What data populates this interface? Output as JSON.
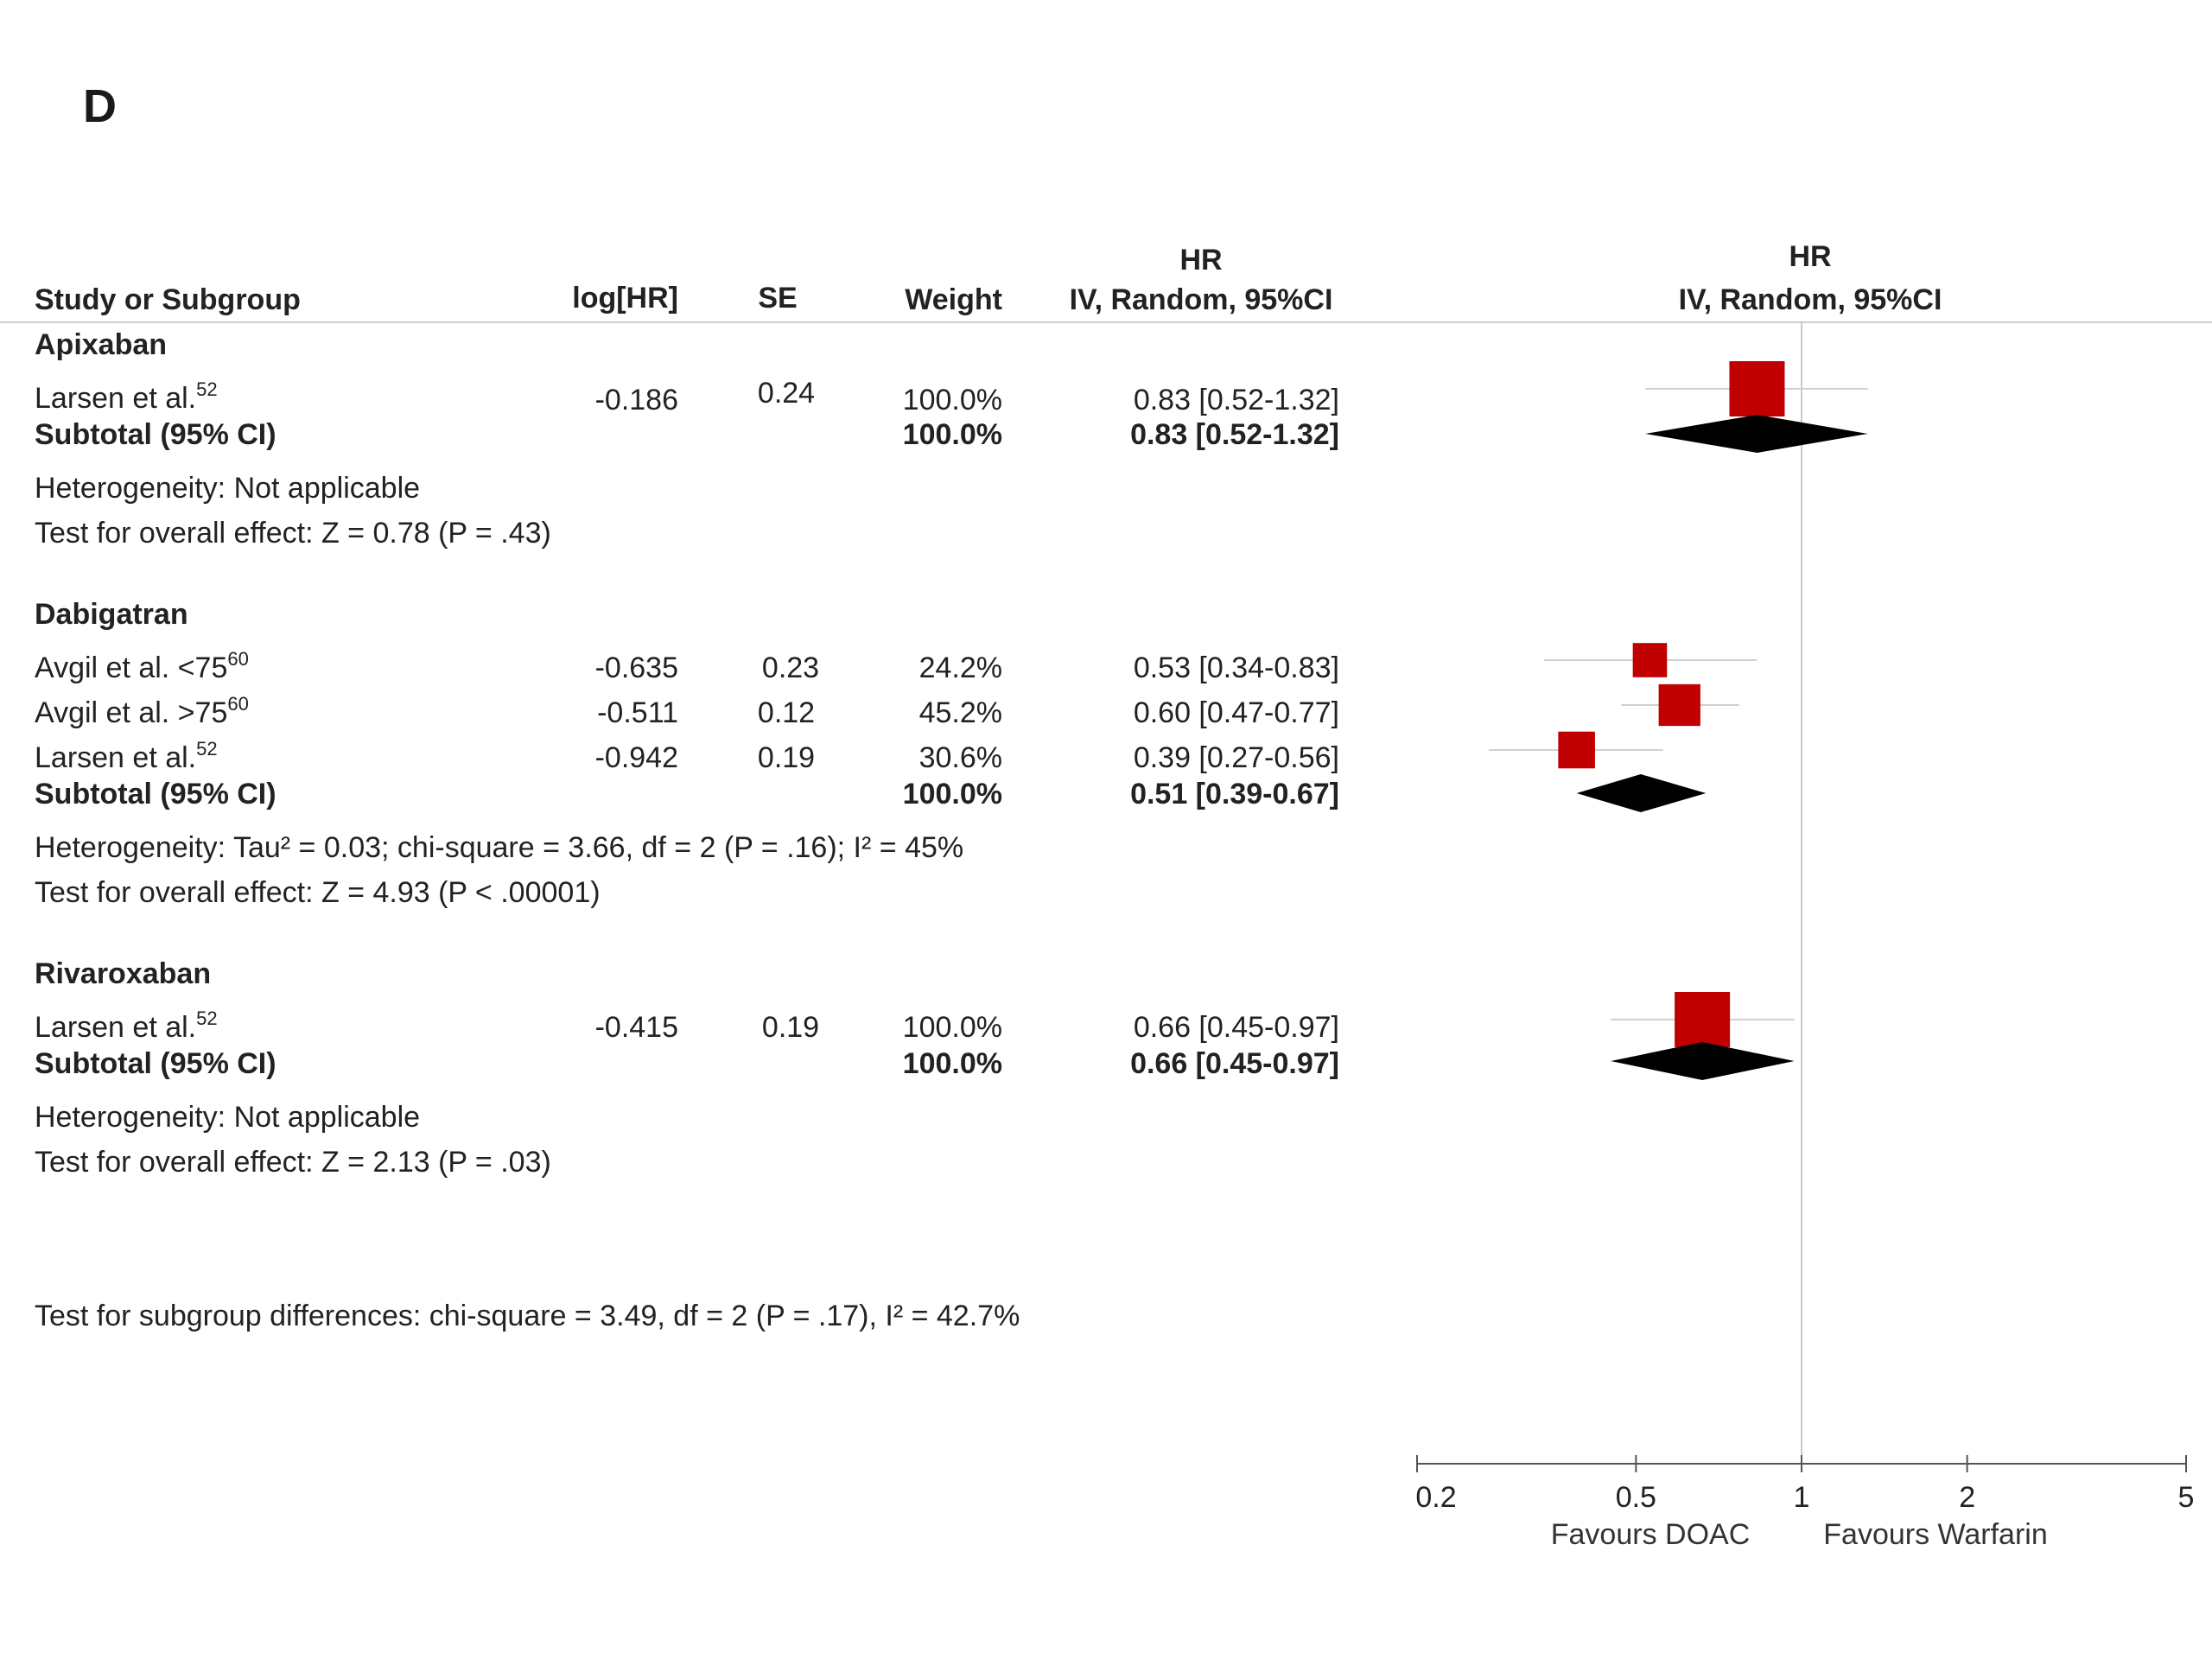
{
  "panel_label": "D",
  "headers": {
    "study": "Study or Subgroup",
    "loghr": "log[HR]",
    "se": "SE",
    "weight": "Weight",
    "hr_text_top": "HR",
    "hr_text_bottom": "IV, Random, 95%CI",
    "hr_plot_top": "HR",
    "hr_plot_bottom": "IV, Random, 95%CI"
  },
  "groups": [
    {
      "name": "Apixaban",
      "studies": [
        {
          "label": "Larsen et al.",
          "ref": "52",
          "loghr": "-0.186",
          "se": "0.24",
          "weight": "100.0%",
          "ci_text": "0.83 [0.52-1.32]"
        }
      ],
      "subtotal_label": "Subtotal (95% CI)",
      "subtotal_weight": "100.0%",
      "subtotal_ci_text": "0.83 [0.52-1.32]",
      "heterogeneity": "Heterogeneity: Not applicable",
      "overall": "Test for overall effect: Z = 0.78 (P = .43)"
    },
    {
      "name": "Dabigatran",
      "studies": [
        {
          "label": "Avgil et al. <75",
          "ref": "60",
          "loghr": "-0.635",
          "se": "0.23",
          "weight": "24.2%",
          "ci_text": "0.53 [0.34-0.83]"
        },
        {
          "label": "Avgil et al. >75",
          "ref": "60",
          "loghr": "-0.511",
          "se": "0.12",
          "weight": "45.2%",
          "ci_text": "0.60 [0.47-0.77]"
        },
        {
          "label": "Larsen et al.",
          "ref": "52",
          "loghr": "-0.942",
          "se": "0.19",
          "weight": "30.6%",
          "ci_text": "0.39 [0.27-0.56]"
        }
      ],
      "subtotal_label": "Subtotal (95% CI)",
      "subtotal_weight": "100.0%",
      "subtotal_ci_text": "0.51 [0.39-0.67]",
      "heterogeneity": "Heterogeneity: Tau² = 0.03; chi-square = 3.66, df = 2 (P = .16); I² = 45%",
      "overall": "Test for overall effect: Z = 4.93 (P < .00001)"
    },
    {
      "name": "Rivaroxaban",
      "studies": [
        {
          "label": "Larsen et al.",
          "ref": "52",
          "loghr": "-0.415",
          "se": "0.19",
          "weight": "100.0%",
          "ci_text": "0.66 [0.45-0.97]"
        }
      ],
      "subtotal_label": "Subtotal (95% CI)",
      "subtotal_weight": "100.0%",
      "subtotal_ci_text": "0.66 [0.45-0.97]",
      "heterogeneity": "Heterogeneity: Not applicable",
      "overall": "Test for overall effect: Z = 2.13 (P =   .03)"
    }
  ],
  "subgroup_test": "Test for subgroup differences: chi-square = 3.49, df = 2 (P = .17), I² = 42.7%",
  "axis": {
    "tick_labels": [
      "0.2",
      "0.5",
      "1",
      "2",
      "5"
    ],
    "favours_left": "Favours DOAC",
    "favours_right": "Favours Warfarin"
  },
  "colors": {
    "study_marker": "#c00000",
    "diamond": "#000000",
    "ci_line": "#d0d0d0",
    "reference_line": "#c8c8c8",
    "axis": "#555555"
  },
  "chart_data": {
    "type": "forest",
    "scale": "log",
    "xlim": [
      0.2,
      5
    ],
    "ticks": [
      0.2,
      0.5,
      1,
      2,
      5
    ],
    "reference": 1,
    "studies": [
      {
        "group": "Apixaban",
        "hr": 0.83,
        "lo": 0.52,
        "hi": 1.32,
        "weight": 100.0
      },
      {
        "group": "Dabigatran",
        "hr": 0.53,
        "lo": 0.34,
        "hi": 0.83,
        "weight": 24.2
      },
      {
        "group": "Dabigatran",
        "hr": 0.6,
        "lo": 0.47,
        "hi": 0.77,
        "weight": 45.2
      },
      {
        "group": "Dabigatran",
        "hr": 0.39,
        "lo": 0.27,
        "hi": 0.56,
        "weight": 30.6
      },
      {
        "group": "Rivaroxaban",
        "hr": 0.66,
        "lo": 0.45,
        "hi": 0.97,
        "weight": 100.0
      }
    ],
    "subtotals": [
      {
        "group": "Apixaban",
        "hr": 0.83,
        "lo": 0.52,
        "hi": 1.32
      },
      {
        "group": "Dabigatran",
        "hr": 0.51,
        "lo": 0.39,
        "hi": 0.67
      },
      {
        "group": "Rivaroxaban",
        "hr": 0.66,
        "lo": 0.45,
        "hi": 0.97
      }
    ]
  }
}
